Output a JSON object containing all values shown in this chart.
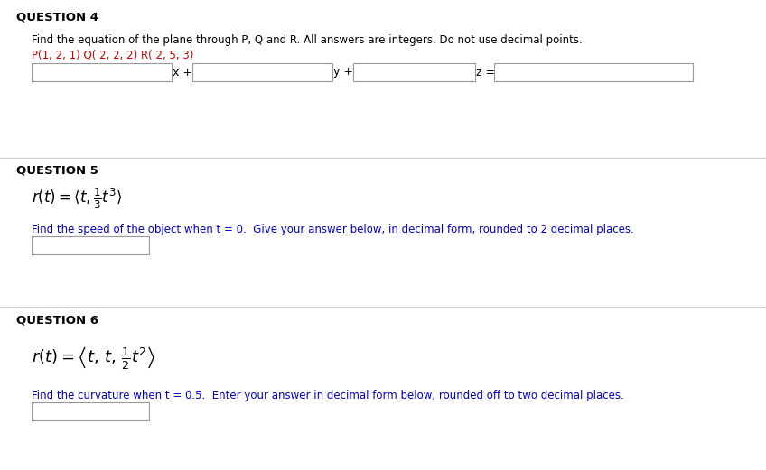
{
  "bg_color": "#ffffff",
  "q4_title": "QUESTION 4",
  "q4_line1": "Find the equation of the plane through P, Q and R. All answers are integers. Do not use decimal points.",
  "q4_line2": "P(1, 2, 1) Q( 2, 2, 2) R( 2, 5, 3)",
  "q4_eq_x": "x +",
  "q4_eq_y": "y +",
  "q4_eq_z": "z =",
  "q5_title": "QUESTION 5",
  "q5_line2": "Find the speed of the object when t = 0.  Give your answer below, in decimal form, rounded to 2 decimal places.",
  "q6_title": "QUESTION 6",
  "q6_line2": "Find the curvature when t = 0.5.  Enter your answer in decimal form below, rounded off to two decimal places.",
  "divider_color": "#cccccc",
  "title_color": "#000000",
  "text_color_black": "#000000",
  "text_color_blue": "#0000cc",
  "text_color_red": "#cc0000",
  "box_edge_color": "#999999",
  "box_fill_color": "#ffffff",
  "title_fontsize": 9.5,
  "body_fontsize": 8.5,
  "math_fontsize": 12
}
